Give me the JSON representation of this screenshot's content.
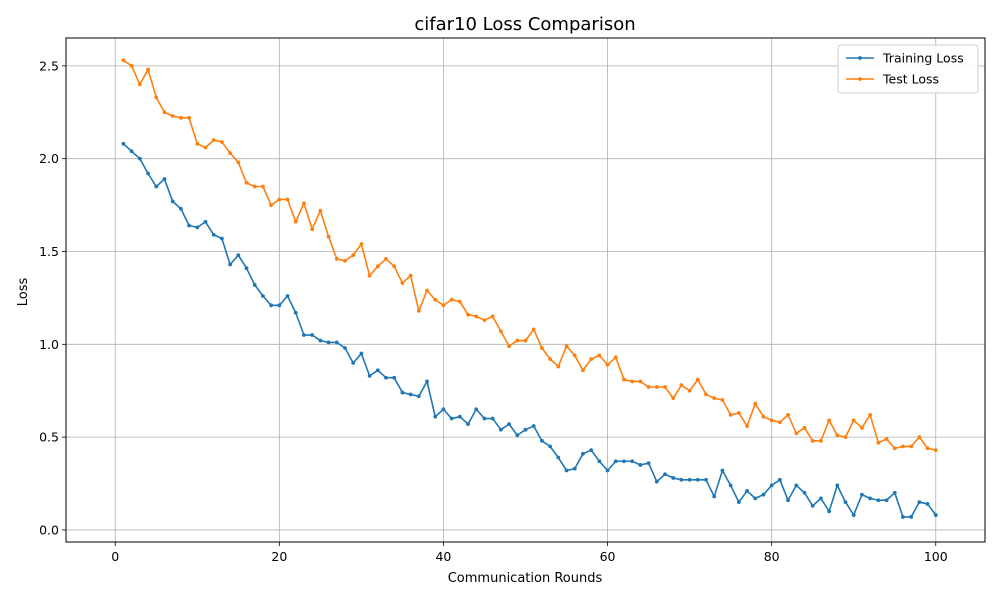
{
  "chart_data": {
    "type": "line",
    "title": "cifar10 Loss Comparison",
    "xlabel": "Communication Rounds",
    "ylabel": "Loss",
    "xlim": [
      -6,
      106
    ],
    "ylim": [
      -0.065,
      2.65
    ],
    "xticks": [
      0,
      20,
      40,
      60,
      80,
      100
    ],
    "xtick_labels": [
      "0",
      "20",
      "40",
      "60",
      "80",
      "100"
    ],
    "yticks": [
      0.0,
      0.5,
      1.0,
      1.5,
      2.0,
      2.5
    ],
    "ytick_labels": [
      "0.0",
      "0.5",
      "1.0",
      "1.5",
      "2.0",
      "2.5"
    ],
    "grid": true,
    "legend_position": "top-right",
    "x": [
      1,
      2,
      3,
      4,
      5,
      6,
      7,
      8,
      9,
      10,
      11,
      12,
      13,
      14,
      15,
      16,
      17,
      18,
      19,
      20,
      21,
      22,
      23,
      24,
      25,
      26,
      27,
      28,
      29,
      30,
      31,
      32,
      33,
      34,
      35,
      36,
      37,
      38,
      39,
      40,
      41,
      42,
      43,
      44,
      45,
      46,
      47,
      48,
      49,
      50,
      51,
      52,
      53,
      54,
      55,
      56,
      57,
      58,
      59,
      60,
      61,
      62,
      63,
      64,
      65,
      66,
      67,
      68,
      69,
      70,
      71,
      72,
      73,
      74,
      75,
      76,
      77,
      78,
      79,
      80,
      81,
      82,
      83,
      84,
      85,
      86,
      87,
      88,
      89,
      90,
      91,
      92,
      93,
      94,
      95,
      96,
      97,
      98,
      99,
      100
    ],
    "series": [
      {
        "name": "Training Loss",
        "color": "#1f77b4",
        "values": [
          2.08,
          2.04,
          2.0,
          1.92,
          1.85,
          1.89,
          1.77,
          1.73,
          1.64,
          1.63,
          1.66,
          1.59,
          1.57,
          1.43,
          1.48,
          1.41,
          1.32,
          1.26,
          1.21,
          1.21,
          1.26,
          1.17,
          1.05,
          1.05,
          1.02,
          1.01,
          1.01,
          0.98,
          0.9,
          0.95,
          0.83,
          0.86,
          0.82,
          0.82,
          0.74,
          0.73,
          0.72,
          0.8,
          0.61,
          0.65,
          0.6,
          0.61,
          0.57,
          0.65,
          0.6,
          0.6,
          0.54,
          0.57,
          0.51,
          0.54,
          0.56,
          0.48,
          0.45,
          0.39,
          0.32,
          0.33,
          0.41,
          0.43,
          0.37,
          0.32,
          0.37,
          0.37,
          0.37,
          0.35,
          0.36,
          0.26,
          0.3,
          0.28,
          0.27,
          0.27,
          0.27,
          0.27,
          0.18,
          0.32,
          0.24,
          0.15,
          0.21,
          0.17,
          0.19,
          0.24,
          0.27,
          0.16,
          0.24,
          0.2,
          0.13,
          0.17,
          0.1,
          0.24,
          0.15,
          0.08,
          0.19,
          0.17,
          0.16,
          0.16,
          0.2,
          0.07,
          0.07,
          0.15,
          0.14,
          0.08
        ]
      },
      {
        "name": "Test Loss",
        "color": "#ff7f0e",
        "values": [
          2.53,
          2.5,
          2.4,
          2.48,
          2.33,
          2.25,
          2.23,
          2.22,
          2.22,
          2.08,
          2.06,
          2.1,
          2.09,
          2.03,
          1.98,
          1.87,
          1.85,
          1.85,
          1.75,
          1.78,
          1.78,
          1.66,
          1.76,
          1.62,
          1.72,
          1.58,
          1.46,
          1.45,
          1.48,
          1.54,
          1.37,
          1.42,
          1.46,
          1.42,
          1.33,
          1.37,
          1.18,
          1.29,
          1.24,
          1.21,
          1.24,
          1.23,
          1.16,
          1.15,
          1.13,
          1.15,
          1.07,
          0.99,
          1.02,
          1.02,
          1.08,
          0.98,
          0.92,
          0.88,
          0.99,
          0.94,
          0.86,
          0.92,
          0.94,
          0.89,
          0.93,
          0.81,
          0.8,
          0.8,
          0.77,
          0.77,
          0.77,
          0.71,
          0.78,
          0.75,
          0.81,
          0.73,
          0.71,
          0.7,
          0.62,
          0.63,
          0.56,
          0.68,
          0.61,
          0.59,
          0.58,
          0.62,
          0.52,
          0.55,
          0.48,
          0.48,
          0.59,
          0.51,
          0.5,
          0.59,
          0.55,
          0.62,
          0.47,
          0.49,
          0.44,
          0.45,
          0.45,
          0.5,
          0.44,
          0.43
        ]
      }
    ]
  }
}
